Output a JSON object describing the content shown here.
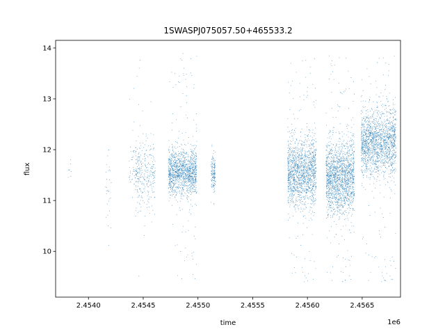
{
  "chart_data": {
    "type": "scatter",
    "title": "1SWASPJ075057.50+465533.2",
    "xlabel": "time",
    "ylabel": "flux",
    "x_offset_label": "1e6",
    "xlim": [
      2.4537,
      2.45685
    ],
    "ylim": [
      9.1,
      14.15
    ],
    "x_ticks": [
      2.454,
      2.4545,
      2.455,
      2.4555,
      2.456,
      2.4565
    ],
    "x_tick_labels": [
      "2.4540",
      "2.4545",
      "2.4550",
      "2.4555",
      "2.4560",
      "2.4565"
    ],
    "y_ticks": [
      10,
      11,
      12,
      13,
      14
    ],
    "y_tick_labels": [
      "10",
      "11",
      "12",
      "13",
      "14"
    ],
    "grid": false,
    "marker_color": "#1f77b4",
    "series": [
      {
        "clusters": [
          {
            "x_center": 2.45383,
            "x_width": 2e-05,
            "y_center": 11.55,
            "y_spread": 0.18,
            "y_min": 11.3,
            "y_max": 11.9,
            "n": 8
          },
          {
            "x_center": 2.45418,
            "x_width": 3e-05,
            "y_center": 11.3,
            "y_spread": 0.45,
            "y_min": 10.1,
            "y_max": 12.0,
            "n": 30
          },
          {
            "x_center": 2.45442,
            "x_width": 5e-05,
            "y_center": 11.6,
            "y_spread": 0.25,
            "y_min": 10.8,
            "y_max": 13.4,
            "n": 60
          },
          {
            "x_center": 2.45452,
            "x_width": 9e-05,
            "y_center": 11.5,
            "y_spread": 0.35,
            "y_min": 9.35,
            "y_max": 13.9,
            "n": 300
          },
          {
            "x_center": 2.45486,
            "x_width": 0.00013,
            "y_center": 11.55,
            "y_spread": 0.22,
            "y_min": 9.45,
            "y_max": 13.9,
            "n": 1400
          },
          {
            "x_center": 2.45514,
            "x_width": 2e-05,
            "y_center": 11.55,
            "y_spread": 0.18,
            "y_min": 10.9,
            "y_max": 12.15,
            "n": 160
          },
          {
            "x_center": 2.45595,
            "x_width": 0.00013,
            "y_center": 11.55,
            "y_spread": 0.32,
            "y_min": 9.35,
            "y_max": 13.8,
            "n": 1600
          },
          {
            "x_center": 2.4563,
            "x_width": 0.00013,
            "y_center": 11.45,
            "y_spread": 0.36,
            "y_min": 9.35,
            "y_max": 13.95,
            "n": 1800
          },
          {
            "x_center": 2.45665,
            "x_width": 0.00016,
            "y_center": 12.15,
            "y_spread": 0.32,
            "y_min": 9.35,
            "y_max": 13.85,
            "n": 1800
          }
        ]
      }
    ]
  }
}
